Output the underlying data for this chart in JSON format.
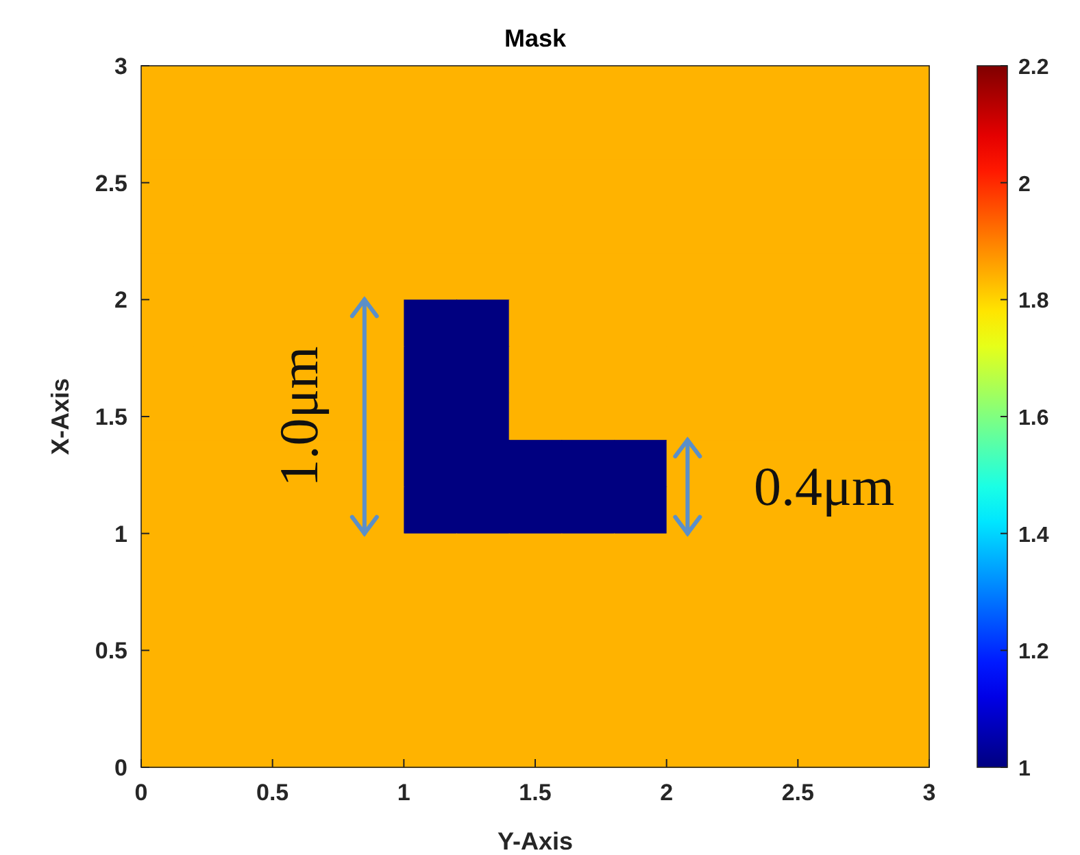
{
  "chart_data": {
    "type": "heatmap",
    "title": "Mask",
    "xlabel": "Y-Axis",
    "ylabel": "X-Axis",
    "xlim": [
      0,
      3
    ],
    "xticks": [
      0,
      0.5,
      1,
      1.5,
      2,
      2.5,
      3
    ],
    "ylim": [
      0,
      3
    ],
    "yticks": [
      0,
      0.5,
      1,
      1.5,
      2,
      2.5,
      3
    ],
    "cells": [
      [
        1.84,
        1.84,
        1.84,
        1.84,
        1.84,
        1.84,
        1.84,
        1.84,
        1.84,
        1.84,
        1.84,
        1.84,
        1.84,
        1.84,
        1.84
      ],
      [
        1.84,
        1.84,
        1.84,
        1.84,
        1.84,
        1.84,
        1.84,
        1.84,
        1.84,
        1.84,
        1.84,
        1.84,
        1.84,
        1.84,
        1.84
      ],
      [
        1.84,
        1.84,
        1.84,
        1.84,
        1.84,
        1.84,
        1.84,
        1.84,
        1.84,
        1.84,
        1.84,
        1.84,
        1.84,
        1.84,
        1.84
      ],
      [
        1.84,
        1.84,
        1.84,
        1.84,
        1.84,
        1.84,
        1.84,
        1.84,
        1.84,
        1.84,
        1.84,
        1.84,
        1.84,
        1.84,
        1.84
      ],
      [
        1.84,
        1.84,
        1.84,
        1.84,
        1.84,
        1.84,
        1.84,
        1.84,
        1.84,
        1.84,
        1.84,
        1.84,
        1.84,
        1.84,
        1.84
      ],
      [
        1.84,
        1.84,
        1.84,
        1.84,
        1.84,
        1,
        1,
        1.84,
        1.84,
        1.84,
        1.84,
        1.84,
        1.84,
        1.84,
        1.84
      ],
      [
        1.84,
        1.84,
        1.84,
        1.84,
        1.84,
        1,
        1,
        1.84,
        1.84,
        1.84,
        1.84,
        1.84,
        1.84,
        1.84,
        1.84
      ],
      [
        1.84,
        1.84,
        1.84,
        1.84,
        1.84,
        1,
        1,
        1.84,
        1.84,
        1.84,
        1.84,
        1.84,
        1.84,
        1.84,
        1.84
      ],
      [
        1.84,
        1.84,
        1.84,
        1.84,
        1.84,
        1,
        1,
        1,
        1,
        1,
        1.84,
        1.84,
        1.84,
        1.84,
        1.84
      ],
      [
        1.84,
        1.84,
        1.84,
        1.84,
        1.84,
        1,
        1,
        1,
        1,
        1,
        1.84,
        1.84,
        1.84,
        1.84,
        1.84
      ],
      [
        1.84,
        1.84,
        1.84,
        1.84,
        1.84,
        1.84,
        1.84,
        1.84,
        1.84,
        1.84,
        1.84,
        1.84,
        1.84,
        1.84,
        1.84
      ],
      [
        1.84,
        1.84,
        1.84,
        1.84,
        1.84,
        1.84,
        1.84,
        1.84,
        1.84,
        1.84,
        1.84,
        1.84,
        1.84,
        1.84,
        1.84
      ],
      [
        1.84,
        1.84,
        1.84,
        1.84,
        1.84,
        1.84,
        1.84,
        1.84,
        1.84,
        1.84,
        1.84,
        1.84,
        1.84,
        1.84,
        1.84
      ],
      [
        1.84,
        1.84,
        1.84,
        1.84,
        1.84,
        1.84,
        1.84,
        1.84,
        1.84,
        1.84,
        1.84,
        1.84,
        1.84,
        1.84,
        1.84
      ],
      [
        1.84,
        1.84,
        1.84,
        1.84,
        1.84,
        1.84,
        1.84,
        1.84,
        1.84,
        1.84,
        1.84,
        1.84,
        1.84,
        1.84,
        1.84
      ]
    ],
    "clim": [
      1,
      2.2
    ],
    "cticks": [
      1,
      1.2,
      1.4,
      1.6,
      1.8,
      2,
      2.2
    ],
    "annotations": [
      "1.0μm",
      "0.4μm"
    ]
  }
}
